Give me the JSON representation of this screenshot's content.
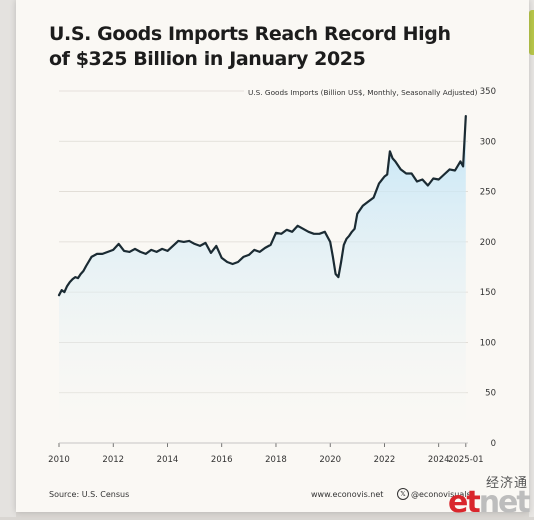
{
  "title_line1": "U.S. Goods Imports Reach Record High",
  "title_line2": "of $325 Billion in January 2025",
  "footer": {
    "source": "Source: U.S. Census",
    "website": "www.econovis.net",
    "handle": "@econovisuals",
    "x_icon": "x-logo-icon"
  },
  "watermark": {
    "cn": "经济通",
    "logo_e": "et",
    "logo_rest": "net"
  },
  "chart_data": {
    "type": "area",
    "title": "U.S. Goods Imports Reach Record High of $325 Billion in January 2025",
    "ylabel": "U.S. Goods Imports (Billion US$, Monthly, Seasonally Adjusted)",
    "ylim": [
      0,
      350
    ],
    "yticks": [
      0,
      50,
      100,
      150,
      200,
      250,
      300,
      350
    ],
    "xlim": [
      2010,
      2025.08
    ],
    "xtick_labels": [
      "2010",
      "2012",
      "2014",
      "2016",
      "2018",
      "2020",
      "2022",
      "2024",
      "2025-01"
    ],
    "xtick_values": [
      2010,
      2012,
      2014,
      2016,
      2018,
      2020,
      2022,
      2024,
      2025.0
    ],
    "grid": true,
    "colors": {
      "line": "#1b2b33",
      "fill_top": "#bfe4f7",
      "fill_bottom": "#faf8f4",
      "grid": "#dedad3"
    },
    "x": [
      2010.0,
      2010.1,
      2010.2,
      2010.3,
      2010.4,
      2010.5,
      2010.6,
      2010.7,
      2010.8,
      2010.9,
      2011.0,
      2011.2,
      2011.4,
      2011.6,
      2011.8,
      2012.0,
      2012.2,
      2012.4,
      2012.6,
      2012.8,
      2013.0,
      2013.2,
      2013.4,
      2013.6,
      2013.8,
      2014.0,
      2014.2,
      2014.4,
      2014.6,
      2014.8,
      2015.0,
      2015.2,
      2015.4,
      2015.6,
      2015.8,
      2016.0,
      2016.2,
      2016.4,
      2016.6,
      2016.8,
      2017.0,
      2017.2,
      2017.4,
      2017.6,
      2017.8,
      2018.0,
      2018.2,
      2018.4,
      2018.6,
      2018.8,
      2019.0,
      2019.2,
      2019.4,
      2019.6,
      2019.8,
      2020.0,
      2020.1,
      2020.2,
      2020.3,
      2020.4,
      2020.5,
      2020.6,
      2020.7,
      2020.8,
      2020.9,
      2021.0,
      2021.2,
      2021.4,
      2021.6,
      2021.8,
      2022.0,
      2022.1,
      2022.2,
      2022.3,
      2022.4,
      2022.6,
      2022.8,
      2023.0,
      2023.2,
      2023.4,
      2023.6,
      2023.8,
      2024.0,
      2024.2,
      2024.4,
      2024.6,
      2024.8,
      2024.9,
      2025.0
    ],
    "y": [
      147,
      152,
      150,
      156,
      160,
      163,
      165,
      164,
      168,
      171,
      176,
      185,
      188,
      188,
      190,
      192,
      198,
      191,
      190,
      193,
      190,
      188,
      192,
      190,
      193,
      191,
      196,
      201,
      200,
      201,
      198,
      196,
      199,
      189,
      196,
      184,
      180,
      178,
      180,
      185,
      187,
      192,
      190,
      194,
      197,
      209,
      208,
      212,
      210,
      216,
      213,
      210,
      208,
      208,
      210,
      200,
      185,
      168,
      165,
      180,
      197,
      203,
      206,
      210,
      213,
      228,
      236,
      240,
      244,
      258,
      265,
      267,
      290,
      283,
      280,
      272,
      268,
      268,
      260,
      262,
      256,
      263,
      262,
      267,
      272,
      271,
      280,
      275,
      325
    ]
  }
}
